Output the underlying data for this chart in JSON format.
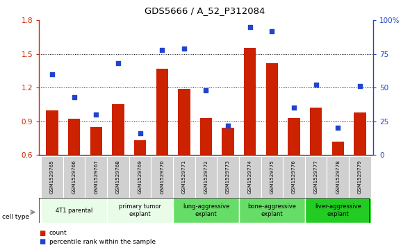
{
  "title": "GDS5666 / A_52_P312084",
  "samples": [
    "GSM1529765",
    "GSM1529766",
    "GSM1529767",
    "GSM1529768",
    "GSM1529769",
    "GSM1529770",
    "GSM1529771",
    "GSM1529772",
    "GSM1529773",
    "GSM1529774",
    "GSM1529775",
    "GSM1529776",
    "GSM1529777",
    "GSM1529778",
    "GSM1529779"
  ],
  "counts": [
    1.0,
    0.92,
    0.85,
    1.05,
    0.73,
    1.37,
    1.19,
    0.93,
    0.84,
    1.55,
    1.42,
    0.93,
    1.02,
    0.72,
    0.98
  ],
  "percentiles": [
    60,
    43,
    30,
    68,
    16,
    78,
    79,
    48,
    22,
    95,
    92,
    35,
    52,
    20,
    51
  ],
  "ylim_left": [
    0.6,
    1.8
  ],
  "ylim_right": [
    0,
    100
  ],
  "yticks_left": [
    0.6,
    0.9,
    1.2,
    1.5,
    1.8
  ],
  "yticks_right": [
    0,
    25,
    50,
    75,
    100
  ],
  "yticklabels_right": [
    "0",
    "25",
    "50",
    "75",
    "100%"
  ],
  "bar_color": "#cc2200",
  "dot_color": "#2244cc",
  "cell_types": [
    {
      "label": "4T1 parental",
      "start": 0,
      "end": 3,
      "color": "#e8fce8"
    },
    {
      "label": "primary tumor\nexplant",
      "start": 3,
      "end": 6,
      "color": "#e8fce8"
    },
    {
      "label": "lung-aggressive\nexplant",
      "start": 6,
      "end": 9,
      "color": "#66dd66"
    },
    {
      "label": "bone-aggressive\nexplant",
      "start": 9,
      "end": 12,
      "color": "#66dd66"
    },
    {
      "label": "liver-aggressive\nexplant",
      "start": 12,
      "end": 15,
      "color": "#22cc22"
    }
  ],
  "legend_count_label": "count",
  "legend_pct_label": "percentile rank within the sample",
  "cell_type_label": "cell type",
  "bar_width": 0.55,
  "ybase": 0.6
}
